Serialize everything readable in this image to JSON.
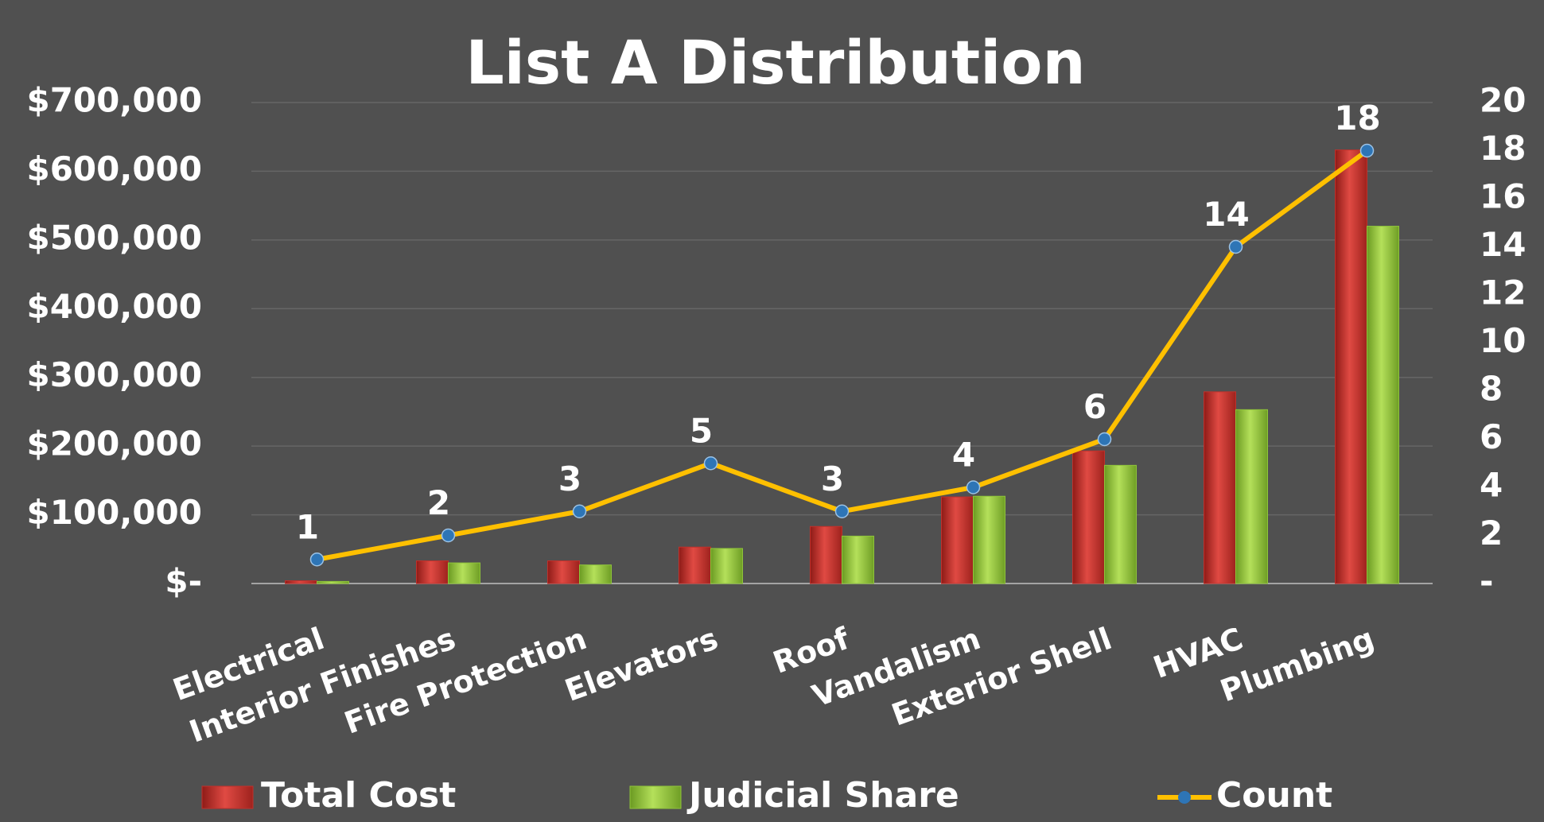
{
  "chart_data": {
    "type": "bar",
    "title": "List A Distribution",
    "categories": [
      "Electrical",
      "Interior Finishes",
      "Fire Protection",
      "Elevators",
      "Roof",
      "Vandalism",
      "Exterior Shell",
      "HVAC",
      "Plumbing"
    ],
    "series": [
      {
        "name": "Total Cost",
        "type": "bar",
        "color": "#c0302b",
        "values": [
          4000,
          33000,
          33000,
          53000,
          83000,
          126000,
          193000,
          279000,
          631000
        ]
      },
      {
        "name": "Judicial Share",
        "type": "bar",
        "color": "#8fc43a",
        "values": [
          3000,
          30000,
          27000,
          51000,
          69000,
          127000,
          172000,
          253000,
          520000
        ]
      },
      {
        "name": "Count",
        "type": "line",
        "axis": "y2",
        "color": "#ffc000",
        "marker_color": "#2e75b6",
        "values": [
          1,
          2,
          3,
          5,
          3,
          4,
          6,
          14,
          18
        ]
      }
    ],
    "ylim": [
      0,
      700000
    ],
    "yticks": [
      {
        "value": 0,
        "label": "$-"
      },
      {
        "value": 100000,
        "label": "$100,000"
      },
      {
        "value": 200000,
        "label": "$200,000"
      },
      {
        "value": 300000,
        "label": "$300,000"
      },
      {
        "value": 400000,
        "label": "$400,000"
      },
      {
        "value": 500000,
        "label": "$500,000"
      },
      {
        "value": 600000,
        "label": "$600,000"
      },
      {
        "value": 700000,
        "label": "$700,000"
      }
    ],
    "y2lim": [
      0,
      20
    ],
    "y2ticks": [
      {
        "value": 0,
        "label": "-"
      },
      2,
      4,
      6,
      8,
      10,
      12,
      14,
      16,
      18,
      20
    ],
    "grid": true,
    "legend": "bottom"
  }
}
